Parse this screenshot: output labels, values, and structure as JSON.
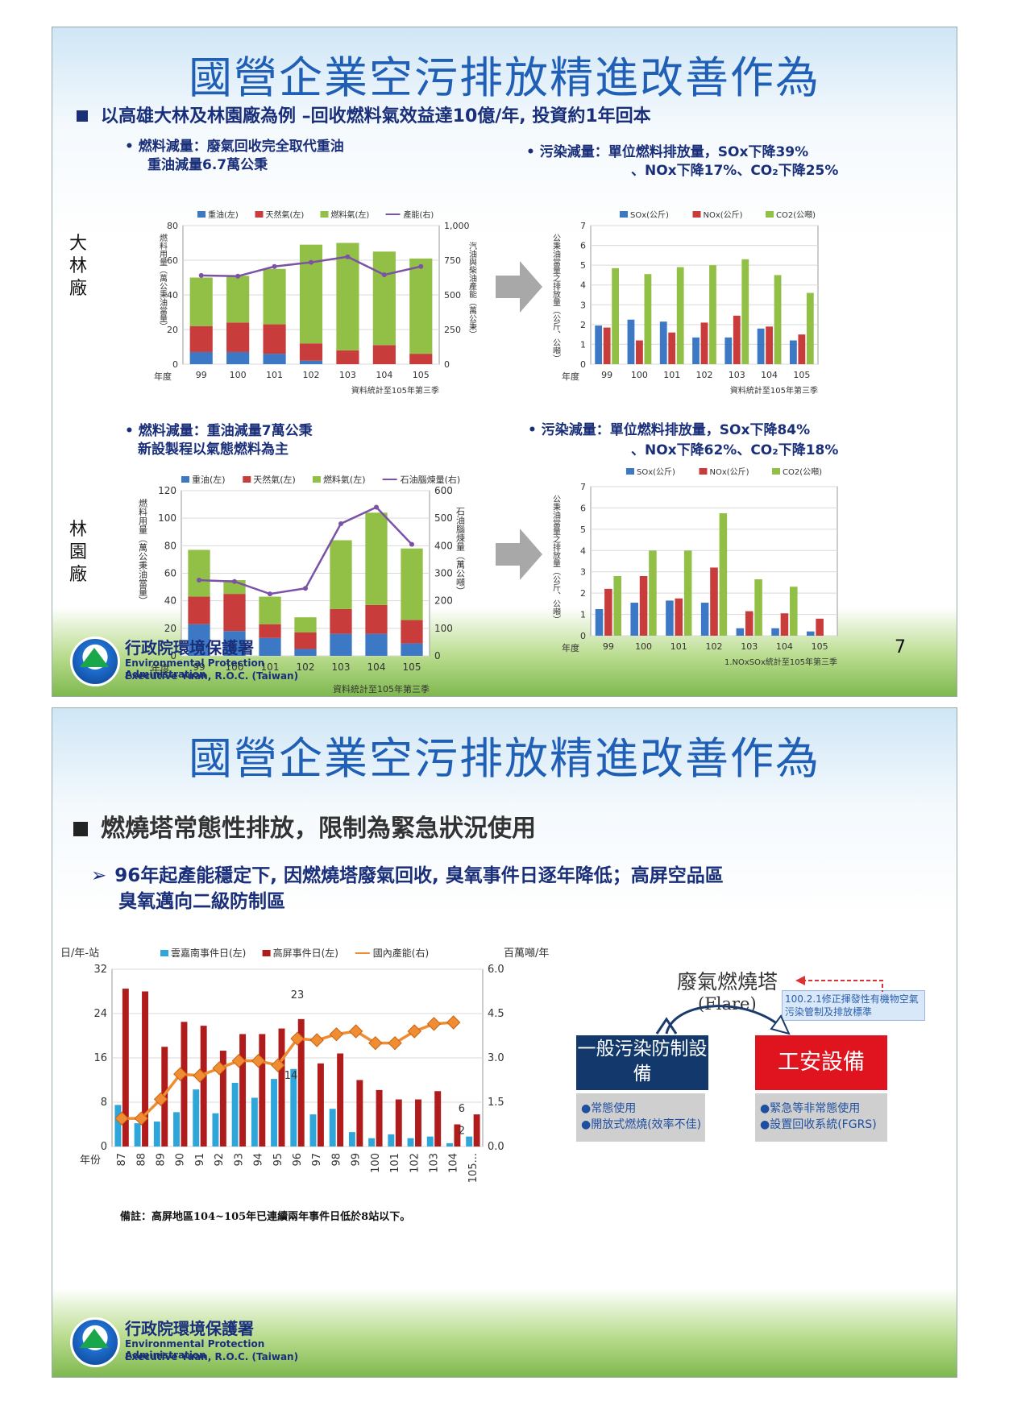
{
  "slide1": {
    "title": "國營企業空污排放精進改善作為",
    "headline": "以高雄大林及林園廠為例 –回收燃料氣效益達10億/年, 投資約1年回本",
    "page_number": "7",
    "dalin": {
      "side_label": "大林廠",
      "fuel_note_1": "•  燃料減量：廢氣回收完全取代重油",
      "fuel_note_2": "重油減量6.7萬公秉",
      "pollution_note_1": "•  污染減量：單位燃料排放量，SOx下降39%",
      "pollution_note_2": "、NOx下降17%、CO₂下降25%"
    },
    "linyuan": {
      "side_label": "林園廠",
      "fuel_note_1": "•  燃料減量：重油減量7萬公秉",
      "fuel_note_2": "新設製程以氣態燃料為主",
      "pollution_note_1": "•  污染減量：單位燃料排放量，SOx下降84%",
      "pollution_note_2": "、NOx下降62%、CO₂下降18%"
    },
    "logo": {
      "line1": "行政院環境保護署",
      "line2": "Environmental Protection Administration",
      "line3": "Executive Yuan, R.O.C. (Taiwan)"
    }
  },
  "slide2": {
    "title": "國營企業空污排放精進改善作為",
    "headline": "燃燒塔常態性排放，限制為緊急狀況使用",
    "subpoint_1": "96年起產能穩定下, 因燃燒塔廢氣回收, 臭氧事件日逐年降低；高屏空品區",
    "subpoint_2": "臭氧邁向二級防制區",
    "note": "備註：高屏地區104~105年已連續兩年事件日低於8站以下。",
    "diagram": {
      "flare_title": "廢氣燃燒塔",
      "flare_sub": "(Flare)",
      "regulation": "100.2.1修正揮發性有機物空氣污染管制及排放標準",
      "left_box": "一般污染防制設備",
      "right_box": "工安設備",
      "left_items": [
        "●常態使用",
        "●開放式燃燒(效率不佳)"
      ],
      "right_items": [
        "●緊急等非常態使用",
        "●設置回收系統(FGRS)"
      ]
    },
    "logo": {
      "line1": "行政院環境保護署",
      "line2": "Environmental Protection Administration",
      "line3": "Executive Yuan, R.O.C. (Taiwan)"
    }
  },
  "chart_data": [
    {
      "id": "dalin-fuel",
      "type": "bar",
      "stacked": true,
      "categories": [
        "99",
        "100",
        "101",
        "102",
        "103",
        "104",
        "105"
      ],
      "xlabel": "年度",
      "ylabel": "燃料用量（萬公秉油當量）",
      "y2label": "汽油與柴油產能（萬公秉）",
      "ylim": [
        0,
        80
      ],
      "yticks": [
        0,
        20,
        40,
        60,
        80
      ],
      "y2lim": [
        0,
        1000
      ],
      "y2ticks": [
        0,
        250,
        500,
        750,
        "1,000"
      ],
      "series": [
        {
          "name": "重油(左)",
          "color": "#3c78c3",
          "values": [
            7,
            7,
            6,
            2,
            0,
            0,
            0
          ]
        },
        {
          "name": "天然氣(左)",
          "color": "#c83c3c",
          "values": [
            15,
            17,
            17,
            10,
            8,
            11,
            6
          ]
        },
        {
          "name": "燃料氣(左)",
          "color": "#92c046",
          "values": [
            28,
            27,
            32,
            57,
            62,
            54,
            55
          ]
        }
      ],
      "line": {
        "name": "產能(右)",
        "color": "#7b52a6",
        "values": [
          640,
          635,
          705,
          735,
          775,
          645,
          705
        ]
      },
      "footnote": "資料統計至105年第三季",
      "legend": "top"
    },
    {
      "id": "dalin-emission",
      "type": "bar",
      "categories": [
        "99",
        "100",
        "101",
        "102",
        "103",
        "104",
        "105"
      ],
      "xlabel": "年度",
      "ylabel": "公秉油當量之排放量（公斤、公噸）",
      "ylim": [
        0,
        7
      ],
      "yticks": [
        0,
        1,
        2,
        3,
        4,
        5,
        6,
        7
      ],
      "series": [
        {
          "name": "SOx(公斤)",
          "color": "#3c78c3",
          "values": [
            1.95,
            2.25,
            2.15,
            1.35,
            1.35,
            1.8,
            1.2
          ]
        },
        {
          "name": "NOx(公斤)",
          "color": "#c83c3c",
          "values": [
            1.85,
            1.2,
            1.6,
            2.1,
            2.45,
            1.9,
            1.5
          ]
        },
        {
          "name": "CO2(公噸)",
          "color": "#92c046",
          "values": [
            4.85,
            4.55,
            4.9,
            5.0,
            5.3,
            4.5,
            3.6
          ]
        }
      ],
      "footnote": "資料統計至105年第三季",
      "legend": "top"
    },
    {
      "id": "linyuan-fuel",
      "type": "bar",
      "stacked": true,
      "categories": [
        "99",
        "100",
        "101",
        "102",
        "103",
        "104",
        "105"
      ],
      "xlabel": "年度",
      "ylabel": "燃料用量（萬公秉油當量）",
      "y2label": "石油腦煉量（萬公噸）",
      "ylim": [
        0,
        120
      ],
      "yticks": [
        0,
        20,
        40,
        60,
        80,
        100,
        120
      ],
      "y2lim": [
        0,
        600
      ],
      "y2ticks": [
        0,
        100,
        200,
        300,
        400,
        500,
        600
      ],
      "series": [
        {
          "name": "重油(左)",
          "color": "#3c78c3",
          "values": [
            23,
            18,
            13,
            5,
            16,
            16,
            9
          ]
        },
        {
          "name": "天然氣(左)",
          "color": "#c83c3c",
          "values": [
            20,
            27,
            10,
            12,
            18,
            21,
            17
          ]
        },
        {
          "name": "燃料氣(左)",
          "color": "#92c046",
          "values": [
            34,
            10,
            20,
            11,
            50,
            67,
            52
          ]
        }
      ],
      "line": {
        "name": "石油腦煉量(右)",
        "color": "#7b52a6",
        "values": [
          275,
          270,
          225,
          245,
          480,
          540,
          405
        ]
      },
      "footnote": "資料統計至105年第三季",
      "legend": "top"
    },
    {
      "id": "linyuan-emission",
      "type": "bar",
      "categories": [
        "99",
        "100",
        "101",
        "102",
        "103",
        "104",
        "105"
      ],
      "xlabel": "年度",
      "ylabel": "公秉油當量之排放量（公斤、公噸）",
      "ylim": [
        0,
        7
      ],
      "yticks": [
        0,
        1,
        2,
        3,
        4,
        5,
        6,
        7
      ],
      "series": [
        {
          "name": "SOx(公斤)",
          "color": "#3c78c3",
          "values": [
            1.25,
            1.55,
            1.65,
            1.55,
            0.35,
            0.35,
            0.2
          ]
        },
        {
          "name": "NOx(公斤)",
          "color": "#c83c3c",
          "values": [
            2.2,
            2.8,
            1.75,
            3.2,
            1.15,
            1.05,
            0.8
          ]
        },
        {
          "name": "CO2(公噸)",
          "color": "#92c046",
          "values": [
            2.8,
            4.0,
            4.0,
            5.75,
            2.65,
            2.3,
            0
          ]
        }
      ],
      "footnote": "1.NOxSOx統計至105年第三季",
      "legend": "top"
    },
    {
      "id": "ozone-events",
      "type": "bar",
      "categories": [
        "87",
        "88",
        "89",
        "90",
        "91",
        "92",
        "93",
        "94",
        "95",
        "96",
        "97",
        "98",
        "99",
        "100",
        "101",
        "102",
        "103",
        "104",
        "105..."
      ],
      "xlabel": "年份",
      "ylabel": "日/年-站",
      "y2label": "百萬噸/年",
      "ylim": [
        0,
        32
      ],
      "yticks": [
        0,
        8,
        16,
        24,
        32
      ],
      "y2lim": [
        0,
        6
      ],
      "y2ticks": [
        "0.0",
        "1.5",
        "3.0",
        "4.5",
        "6.0"
      ],
      "series": [
        {
          "name": "雲嘉南事件日(左)",
          "color": "#2fa6da",
          "values": [
            7.5,
            4.2,
            4.5,
            6.2,
            10.3,
            6.0,
            11.5,
            8.8,
            12.2,
            14,
            5.8,
            6.8,
            2.6,
            1.5,
            2.2,
            1.5,
            1.8,
            0.6,
            1.8
          ]
        },
        {
          "name": "高屏事件日(左)",
          "color": "#b01c1c",
          "values": [
            28.5,
            28,
            18,
            22.5,
            21.8,
            17.3,
            20.3,
            20.3,
            21.3,
            23,
            15,
            16.8,
            12,
            10.2,
            8.5,
            8.5,
            10,
            4,
            5.8
          ]
        }
      ],
      "line": {
        "name": "國內產能(右)",
        "color": "#f08c32",
        "values": [
          0.95,
          0.95,
          1.6,
          2.45,
          2.4,
          2.65,
          2.9,
          2.9,
          2.75,
          3.65,
          3.6,
          3.8,
          3.9,
          3.5,
          3.5,
          3.9,
          4.15,
          4.2,
          null
        ]
      },
      "data_labels": [
        {
          "category": "96",
          "value": "23"
        },
        {
          "category": "96",
          "value": "14"
        },
        {
          "category": "105...",
          "value": "6"
        },
        {
          "category": "105...",
          "value": "2"
        }
      ],
      "legend": "top"
    }
  ]
}
